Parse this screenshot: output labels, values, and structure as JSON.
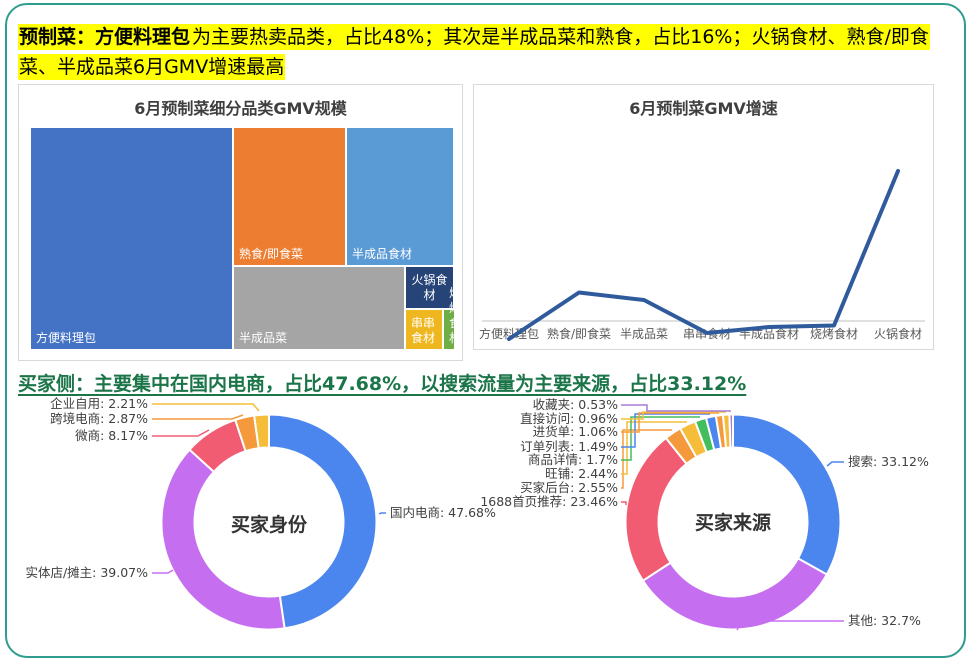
{
  "page": {
    "border_color": "#2E9C8F",
    "headline1": {
      "highlight_color": "#FFFF00",
      "bold": "预制菜：方便料理包",
      "line1_rest": "为主要热卖品类，占比48%；其次是半成品菜和熟食，占比16%；火锅食材、熟食/即食",
      "line2": "菜、半成品菜6月GMV增速最高"
    },
    "headline2": {
      "text": "买家侧：主要集中在国内电商，占比47.68%，以搜索流量为主要来源，占比33.12%",
      "color": "#1B7549"
    }
  },
  "chart_data": [
    {
      "id": "treemap-gmv-scale",
      "type": "treemap",
      "title": "6月预制菜细分品类GMV规模",
      "items": [
        {
          "label": "方便料理包",
          "share_pct": 48,
          "color": "#4472C4"
        },
        {
          "label": "熟食/即食菜",
          "share_pct": 16.3,
          "color": "#ED7D31"
        },
        {
          "label": "半成品食材",
          "share_pct": 15.6,
          "color": "#5B9BD5"
        },
        {
          "label": "半成品菜",
          "share_pct": 14.9,
          "color": "#A5A5A5"
        },
        {
          "label": "火锅食材",
          "share_pct": 2.1,
          "color": "#264478"
        },
        {
          "label": "串串食材",
          "share_pct": 1.5,
          "color": "#EFB71F"
        },
        {
          "label": "烧烤食材",
          "share_pct": 0.9,
          "color": "#6FAD47"
        }
      ]
    },
    {
      "id": "line-gmv-growth",
      "type": "line",
      "title": "6月预制菜GMV增速",
      "categories": [
        "方便料理包",
        "熟食/即食菜",
        "半成品菜",
        "串串食材",
        "半成品食材",
        "烧烤食材",
        "火锅食材"
      ],
      "values": [
        -12,
        19,
        14,
        -8,
        -4,
        -3,
        100
      ],
      "values_scale": "estimated_growth_index_max_100",
      "y_axis_visible": false,
      "grid": false,
      "line_color": "#2F5B9D",
      "axis_color": "#D6D6D6"
    },
    {
      "id": "donut-buyer-identity",
      "type": "pie",
      "title": "买家身份",
      "donut": true,
      "start_angle": "top_clockwise",
      "slices": [
        {
          "label": "国内电商",
          "value": "47.68",
          "color": "#4B86EE"
        },
        {
          "label": "实体店/摊主",
          "value": "39.07",
          "color": "#C56FF0"
        },
        {
          "label": "微商",
          "value": "8.17",
          "color": "#F25C72"
        },
        {
          "label": "跨境电商",
          "value": "2.87",
          "color": "#F59A3C"
        },
        {
          "label": "企业自用",
          "value": "2.21",
          "color": "#F6BD3A"
        }
      ]
    },
    {
      "id": "donut-buyer-source",
      "type": "pie",
      "title": "买家来源",
      "donut": true,
      "start_angle": "top_clockwise",
      "slices": [
        {
          "label": "搜索",
          "value": "33.12",
          "color": "#4B86EE"
        },
        {
          "label": "其他",
          "value": "32.7",
          "color": "#C56FF0"
        },
        {
          "label": "1688首页推荐",
          "value": "23.46",
          "color": "#F25C72"
        },
        {
          "label": "买家后台",
          "value": "2.55",
          "color": "#F59A3C"
        },
        {
          "label": "旺铺",
          "value": "2.44",
          "color": "#F6BD3A"
        },
        {
          "label": "商品详情",
          "value": "1.7",
          "color": "#42BE5C"
        },
        {
          "label": "订单列表",
          "value": "1.49",
          "color": "#4B86EE"
        },
        {
          "label": "进货单",
          "value": "1.06",
          "color": "#F59A3C"
        },
        {
          "label": "直接访问",
          "value": "0.96",
          "color": "#F6BD3A"
        },
        {
          "label": "收藏夹",
          "value": "0.53",
          "color": "#A87BD9"
        }
      ]
    }
  ]
}
